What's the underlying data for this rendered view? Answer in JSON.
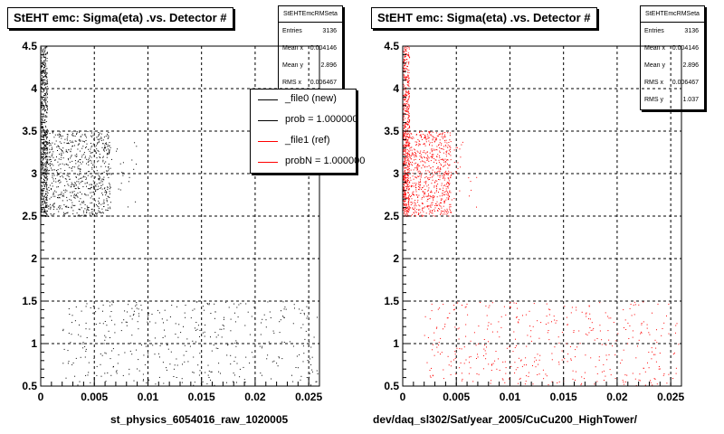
{
  "canvas_note": "",
  "chart_data": [
    {
      "type": "scatter",
      "title": "StEHT emc: Sigma(eta) .vs. Detector #",
      "xlabel": "st_physics_6054016_raw_1020005",
      "ylabel": "",
      "xlim": [
        0,
        0.026
      ],
      "ylim": [
        0.5,
        4.5
      ],
      "xticks": [
        "0",
        "0.005",
        "0.01",
        "0.015",
        "0.02",
        "0.025"
      ],
      "yticks": [
        "0.5",
        "1",
        "1.5",
        "2",
        "2.5",
        "3",
        "3.5",
        "4",
        "4.5"
      ],
      "grid": true,
      "series": [
        {
          "name": "_file0 (new)",
          "color": "#000000",
          "clusters": [
            {
              "x": [
                0,
                0.0006
              ],
              "y": [
                2.5,
                4.5
              ],
              "density": "very high"
            },
            {
              "x": [
                0,
                0.0065
              ],
              "y": [
                2.5,
                3.5
              ],
              "density": "high"
            },
            {
              "x": [
                0.0065,
                0.009
              ],
              "y": [
                2.6,
                3.4
              ],
              "density": "low"
            },
            {
              "x": [
                0.002,
                0.0258
              ],
              "y": [
                0.5,
                1.5
              ],
              "density": "sparse"
            }
          ]
        }
      ],
      "stats": {
        "header": "StEHTEmcRMSeta",
        "rows": [
          {
            "label": "Entries",
            "value": "3136"
          },
          {
            "label": "Mean x",
            "value": "0.004146"
          },
          {
            "label": "Mean y",
            "value": "2.896"
          },
          {
            "label": "RMS x",
            "value": "0.006467"
          }
        ]
      },
      "legend": {
        "placement": "top-right",
        "entries": [
          {
            "label": "_file0 (new)",
            "color": "#000000"
          },
          {
            "label": "prob = 1.000000",
            "color": "#000000"
          },
          {
            "label": "_file1 (ref)",
            "color": "#ff0000"
          },
          {
            "label": "probN = 1.000000",
            "color": "#ff0000"
          }
        ]
      }
    },
    {
      "type": "scatter",
      "title": "StEHT emc: Sigma(eta) .vs. Detector #",
      "xlabel": "dev/daq_sl302/Sat/year_2005/CuCu200_HighTower/",
      "ylabel": "",
      "xlim": [
        0,
        0.026
      ],
      "ylim": [
        0.5,
        4.5
      ],
      "xticks": [
        "0",
        "0.005",
        "0.01",
        "0.015",
        "0.02",
        "0.025"
      ],
      "yticks": [
        "0.5",
        "1",
        "1.5",
        "2",
        "2.5",
        "3",
        "3.5",
        "4",
        "4.5"
      ],
      "grid": true,
      "series": [
        {
          "name": "_file1 (ref)",
          "color": "#ff0000",
          "clusters": [
            {
              "x": [
                0,
                0.0006
              ],
              "y": [
                2.5,
                4.5
              ],
              "density": "very high"
            },
            {
              "x": [
                0,
                0.0045
              ],
              "y": [
                2.5,
                3.5
              ],
              "density": "high"
            },
            {
              "x": [
                0.0045,
                0.007
              ],
              "y": [
                2.6,
                3.4
              ],
              "density": "low"
            },
            {
              "x": [
                0.002,
                0.0258
              ],
              "y": [
                0.5,
                1.5
              ],
              "density": "sparse"
            }
          ]
        }
      ],
      "stats": {
        "header": "StEHTEmcRMSeta",
        "rows": [
          {
            "label": "Entries",
            "value": "3136"
          },
          {
            "label": "Mean x",
            "value": "0.004146"
          },
          {
            "label": "Mean y",
            "value": "2.896"
          },
          {
            "label": "RMS x",
            "value": "0.006467"
          },
          {
            "label": "RMS y",
            "value": "1.037"
          }
        ]
      }
    }
  ]
}
